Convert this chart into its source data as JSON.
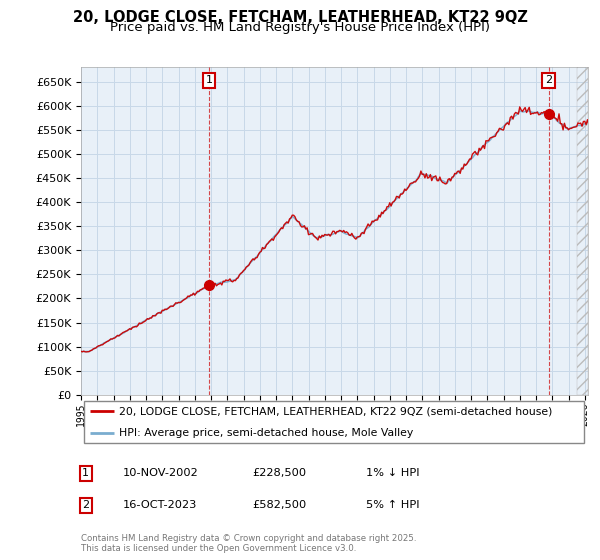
{
  "title": "20, LODGE CLOSE, FETCHAM, LEATHERHEAD, KT22 9QZ",
  "subtitle": "Price paid vs. HM Land Registry's House Price Index (HPI)",
  "ylim": [
    0,
    680000
  ],
  "yticks": [
    0,
    50000,
    100000,
    150000,
    200000,
    250000,
    300000,
    350000,
    400000,
    450000,
    500000,
    550000,
    600000,
    650000
  ],
  "xlim_start": 1995.3,
  "xlim_end": 2026.2,
  "legend_line1": "20, LODGE CLOSE, FETCHAM, LEATHERHEAD, KT22 9QZ (semi-detached house)",
  "legend_line2": "HPI: Average price, semi-detached house, Mole Valley",
  "sale1_date": "10-NOV-2002",
  "sale1_price": "£228,500",
  "sale1_hpi": "1% ↓ HPI",
  "sale2_date": "16-OCT-2023",
  "sale2_price": "£582,500",
  "sale2_hpi": "5% ↑ HPI",
  "sale1_x": 2002.87,
  "sale1_y": 228500,
  "sale2_x": 2023.79,
  "sale2_y": 582500,
  "copyright": "Contains HM Land Registry data © Crown copyright and database right 2025.\nThis data is licensed under the Open Government Licence v3.0.",
  "line_color_red": "#cc0000",
  "line_color_blue": "#7aadcf",
  "plot_bg": "#e8f0f8",
  "grid_color": "#c8d8e8",
  "background_color": "#ffffff",
  "title_fontsize": 10.5,
  "subtitle_fontsize": 9.5,
  "base_price_1995": 90000,
  "base_price_2002": 228500,
  "base_price_2023": 582500
}
